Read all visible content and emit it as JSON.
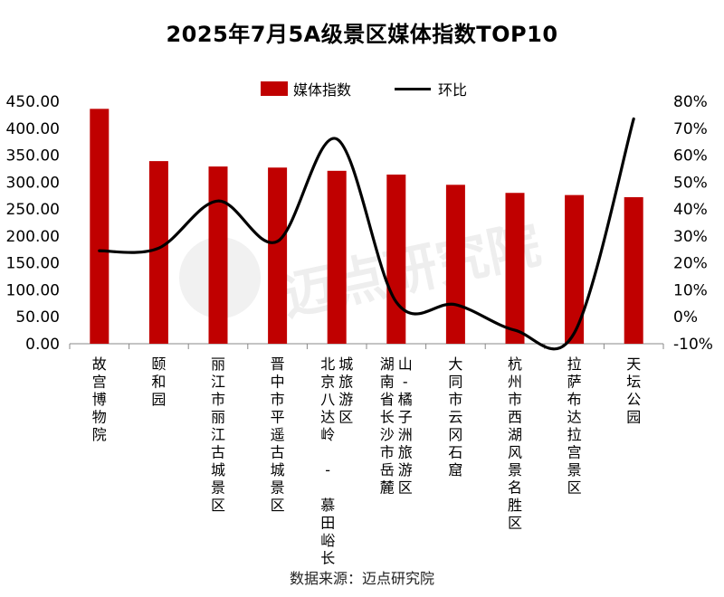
{
  "chart_data": {
    "type": "bar",
    "title": "2025年7月5A级景区媒体指数TOP10",
    "legend": {
      "placement": "top",
      "entries": [
        "媒体指数",
        "环比"
      ]
    },
    "categories": [
      [
        "故宫博物院"
      ],
      [
        "颐和园"
      ],
      [
        "丽江市丽江古城景区"
      ],
      [
        "晋中市平遥古城景区"
      ],
      [
        "北京八达岭 - 慕田峪长",
        "城旅游区"
      ],
      [
        "湖南省长沙市岳麓",
        "山-橘子洲旅游区"
      ],
      [
        "大同市云冈石窟"
      ],
      [
        "杭州市西湖风景名胜区"
      ],
      [
        "拉萨布达拉宫景区"
      ],
      [
        "天坛公园"
      ]
    ],
    "series": [
      {
        "name": "媒体指数",
        "type": "bar",
        "color": "#c00000",
        "axis": "left",
        "values": [
          436,
          339,
          329,
          327,
          321,
          314,
          295,
          280,
          276,
          272
        ]
      },
      {
        "name": "环比",
        "type": "line",
        "color": "#000000",
        "axis": "right",
        "smooth": true,
        "values": [
          24.5,
          25.5,
          43,
          28,
          66,
          5.5,
          4.5,
          -5,
          -6,
          73.5
        ]
      }
    ],
    "y_left": {
      "range": [
        0,
        450
      ],
      "ticks": [
        "0.00",
        "50.00",
        "100.00",
        "150.00",
        "200.00",
        "250.00",
        "300.00",
        "350.00",
        "400.00",
        "450.00"
      ]
    },
    "y_right": {
      "range": [
        -10,
        80
      ],
      "ticks": [
        "-10%",
        "0%",
        "10%",
        "20%",
        "30%",
        "40%",
        "50%",
        "60%",
        "70%",
        "80%"
      ]
    },
    "grid": false
  },
  "watermark_text": "迈点研究院",
  "source": "数据来源：迈点研究院"
}
